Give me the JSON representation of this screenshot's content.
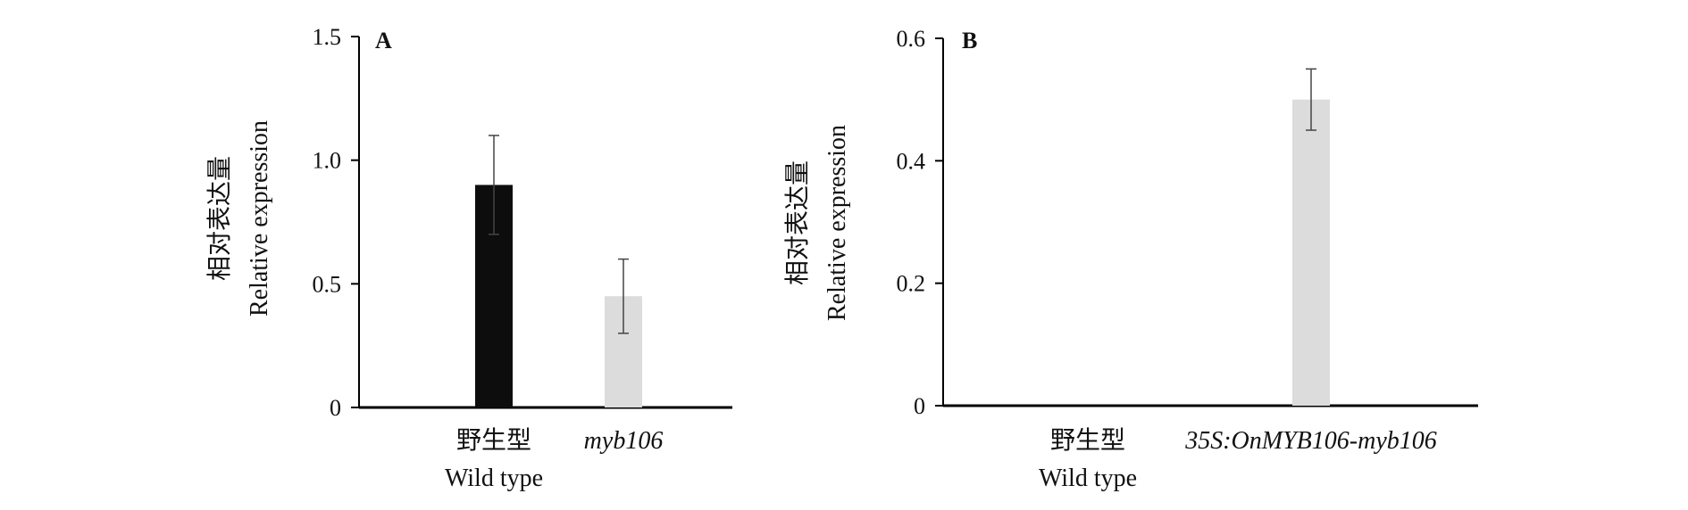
{
  "chart_data": [
    {
      "type": "bar",
      "panel_label": "A",
      "ylabel_cn": "相对表达量",
      "ylabel_en": "Relative expression",
      "ylim": [
        0,
        1.5
      ],
      "yticks": [
        "0",
        "0.5",
        "1.0",
        "1.5"
      ],
      "yticks_values": [
        0,
        0.5,
        1.0,
        1.5
      ],
      "categories": [
        {
          "line1": "野生型",
          "line2": "Wild type",
          "italic": false
        },
        {
          "line1": "myb106",
          "line2": "",
          "italic": true
        }
      ],
      "values": [
        0.9,
        0.45
      ],
      "errors": [
        0.2,
        0.15
      ],
      "colors": [
        "#0d0d0d",
        "#dcdcdc"
      ]
    },
    {
      "type": "bar",
      "panel_label": "B",
      "ylabel_cn": "相对表达量",
      "ylabel_en": "Relative expression",
      "ylim": [
        0,
        0.6
      ],
      "yticks": [
        "0",
        "0.2",
        "0.4",
        "0.6"
      ],
      "yticks_values": [
        0,
        0.2,
        0.4,
        0.6
      ],
      "categories": [
        {
          "line1": "野生型",
          "line2": "Wild type",
          "italic": false
        },
        {
          "line1": "35S:OnMYB106-myb106",
          "line2": "",
          "italic": true
        }
      ],
      "values": [
        0,
        0.5
      ],
      "errors": [
        0,
        0.05
      ],
      "colors": [
        "#0d0d0d",
        "#dcdcdc"
      ]
    }
  ]
}
